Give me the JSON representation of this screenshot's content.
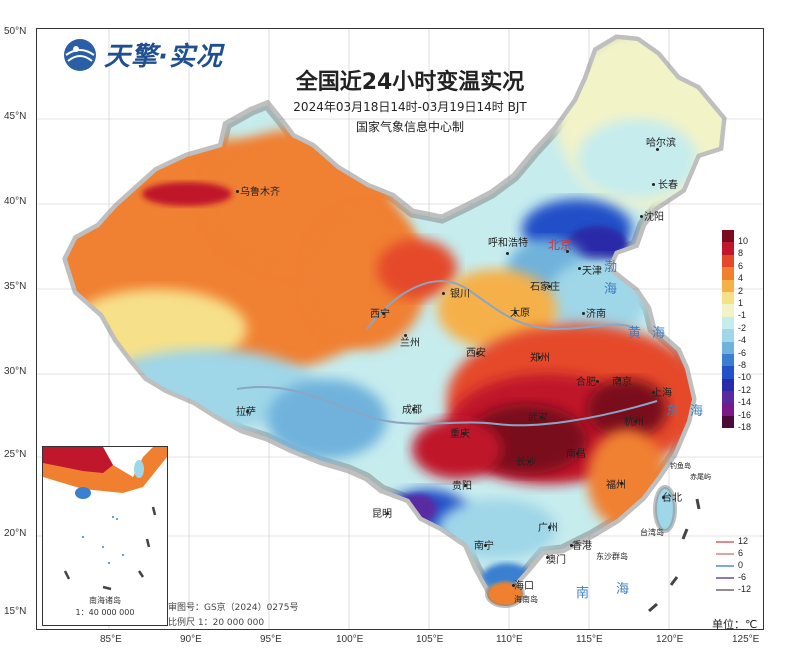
{
  "logo": {
    "text": "天擎·实况"
  },
  "title": "全国近24小时变温实况",
  "subtitle": "2024年03月18日14时-03月19日14时 BJT",
  "org": "国家气象信息中心制",
  "unit": "单位：℃",
  "map_no": "审图号：GS京（2024）0275号",
  "scale": "比例尺 1：20 000 000",
  "inset": {
    "title": "南海诸岛",
    "scale": "1：40 000 000"
  },
  "lat_labels": [
    "50°N",
    "45°N",
    "40°N",
    "35°N",
    "30°N",
    "25°N",
    "20°N",
    "15°N"
  ],
  "lon_labels": [
    "85°E",
    "90°E",
    "95°E",
    "100°E",
    "105°E",
    "110°E",
    "115°E",
    "120°E",
    "125°E"
  ],
  "legend": {
    "labels": [
      "10",
      "8",
      "6",
      "4",
      "2",
      "1",
      "-1",
      "-2",
      "-4",
      "-6",
      "-8",
      "-10",
      "-12",
      "-14",
      "-16",
      "-18"
    ],
    "colors": [
      "#7a0a1e",
      "#c0172c",
      "#e5492b",
      "#f08030",
      "#f5b048",
      "#f7e08a",
      "#f3f3c8",
      "#c6ecee",
      "#9fd6e8",
      "#6fb2dc",
      "#3b7fd0",
      "#2450c8",
      "#2b2aa8",
      "#5a2aa0",
      "#7a1a86",
      "#4a0a3a"
    ]
  },
  "line_legend": [
    {
      "label": "12",
      "color": "#e08a8a"
    },
    {
      "label": "6",
      "color": "#e0a3a3"
    },
    {
      "label": "0",
      "color": "#7aa7e8"
    },
    {
      "label": "-6",
      "color": "#8a78c8"
    },
    {
      "label": "-12",
      "color": "#9a8a8a"
    }
  ],
  "cities": {
    "urumqi": "乌鲁木齐",
    "harbin": "哈尔滨",
    "changchun": "长春",
    "shenyang": "沈阳",
    "beijing": "北京",
    "tianjin": "天津",
    "hohhot": "呼和浩特",
    "shijiazhuang": "石家庄",
    "taiyuan": "太原",
    "jinan": "济南",
    "yinchuan": "银川",
    "xining": "西宁",
    "lanzhou": "兰州",
    "xian": "西安",
    "zhengzhou": "郑州",
    "hefei": "合肥",
    "nanjing": "南京",
    "shanghai": "上海",
    "hangzhou": "杭州",
    "wuhan": "武汉",
    "chengdu": "成都",
    "chongqing": "重庆",
    "lhasa": "拉萨",
    "changsha": "长沙",
    "nanchang": "南昌",
    "fuzhou": "福州",
    "taipei": "台北",
    "guiyang": "贵阳",
    "kunming": "昆明",
    "nanning": "南宁",
    "guangzhou": "广州",
    "hongkong": "香港",
    "macau": "澳门",
    "haikou": "海口",
    "diaoyu": "钓鱼岛",
    "chiwei": "赤尾屿",
    "taiwan": "台湾岛",
    "dongsha": "东沙群岛",
    "hainan": "海南岛"
  },
  "seas": {
    "bohai": "渤",
    "bohai2": "海",
    "huang": "黄",
    "huang2": "海",
    "dong": "东",
    "dong2": "海",
    "nan": "南",
    "nan2": "海"
  }
}
